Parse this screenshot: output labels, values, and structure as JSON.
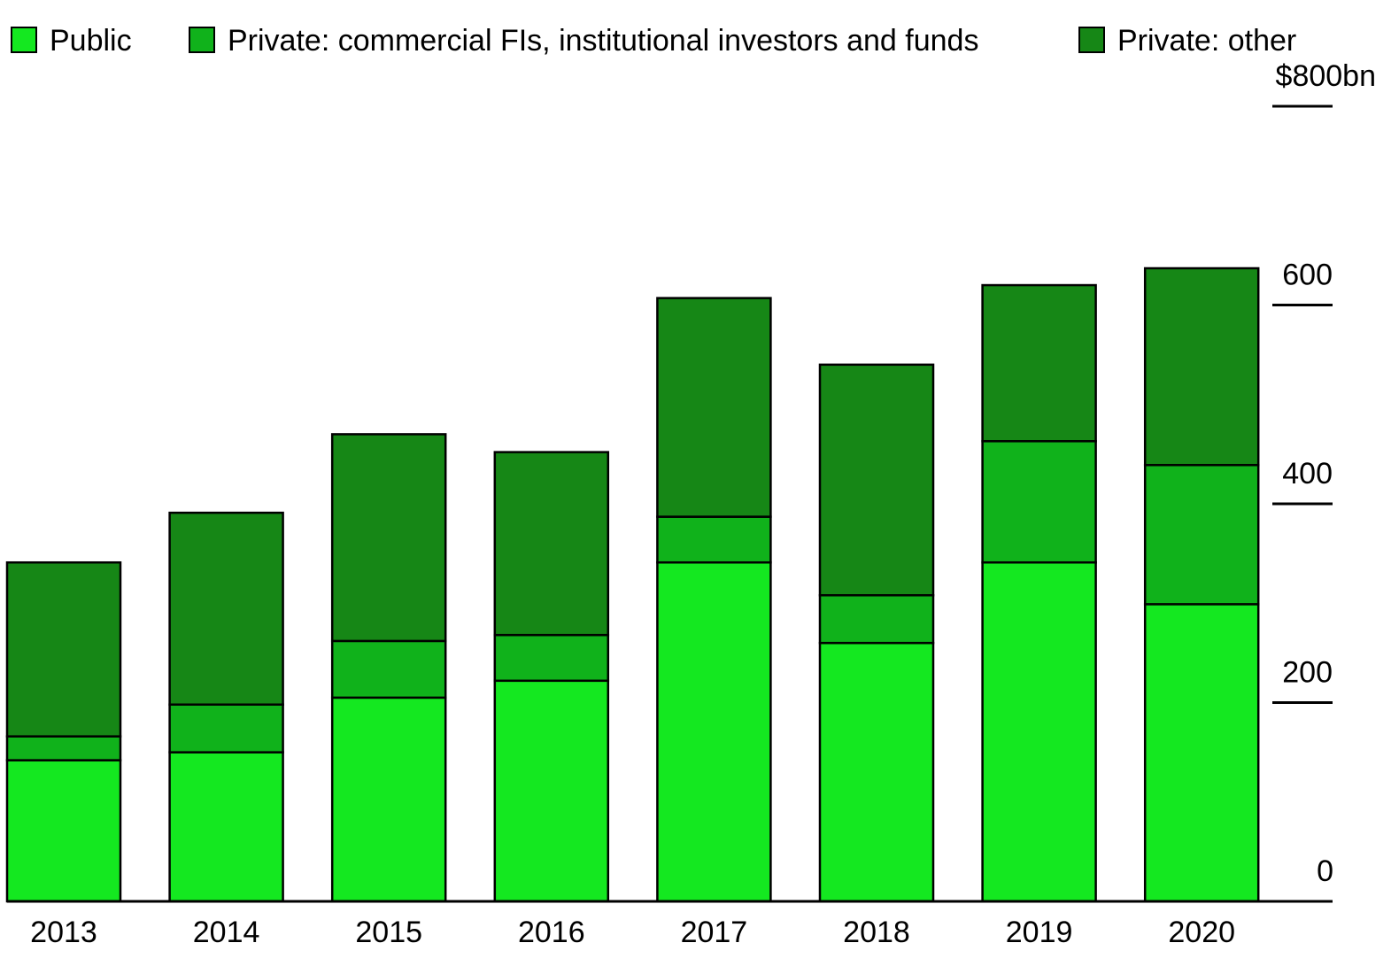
{
  "colors": {
    "public": "#14e820",
    "private_commercial": "#10b21b",
    "private_other": "#168716",
    "outline": "#000000",
    "background": "#ffffff"
  },
  "chart_data": {
    "type": "bar",
    "stacked": true,
    "categories": [
      "2013",
      "2014",
      "2015",
      "2016",
      "2017",
      "2018",
      "2019",
      "2020"
    ],
    "series": [
      {
        "name": "Public",
        "color": "#14e820",
        "values": [
          142,
          150,
          205,
          222,
          341,
          260,
          341,
          299
        ]
      },
      {
        "name": "Private: commercial FIs, institutional investors and funds",
        "color": "#10b21b",
        "values": [
          24,
          48,
          57,
          46,
          46,
          48,
          122,
          140
        ]
      },
      {
        "name": "Private: other",
        "color": "#168716",
        "values": [
          175,
          193,
          208,
          184,
          220,
          232,
          157,
          198
        ]
      }
    ],
    "y_axis": {
      "min": 0,
      "max": 800,
      "ticks": [
        0,
        200,
        400,
        600,
        800
      ],
      "tick_labels": [
        "0",
        "200",
        "400",
        "600",
        "$800bn"
      ],
      "position": "right"
    },
    "legend_position": "top-left",
    "title": "",
    "xlabel": "",
    "ylabel": ""
  }
}
